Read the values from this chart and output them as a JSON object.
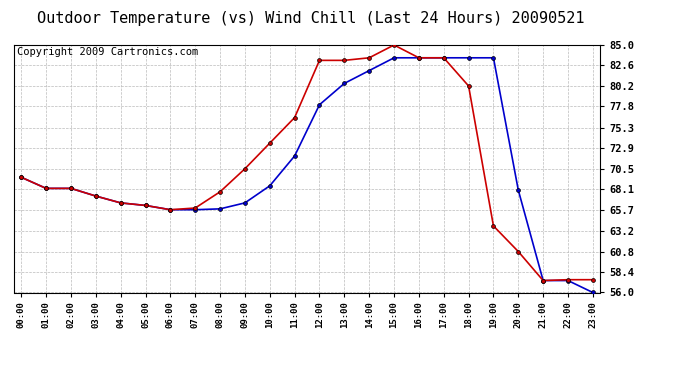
{
  "title": "Outdoor Temperature (vs) Wind Chill (Last 24 Hours) 20090521",
  "copyright": "Copyright 2009 Cartronics.com",
  "hours": [
    "00:00",
    "01:00",
    "02:00",
    "03:00",
    "04:00",
    "05:00",
    "06:00",
    "07:00",
    "08:00",
    "09:00",
    "10:00",
    "11:00",
    "12:00",
    "13:00",
    "14:00",
    "15:00",
    "16:00",
    "17:00",
    "18:00",
    "19:00",
    "20:00",
    "21:00",
    "22:00",
    "23:00"
  ],
  "temp": [
    69.5,
    68.2,
    68.2,
    67.3,
    66.5,
    66.2,
    65.7,
    65.9,
    67.8,
    70.5,
    73.5,
    76.5,
    83.2,
    83.2,
    83.5,
    85.0,
    83.5,
    83.5,
    80.2,
    63.8,
    60.8,
    57.4,
    57.5,
    57.5
  ],
  "wind_chill": [
    69.5,
    68.2,
    68.2,
    67.3,
    66.5,
    66.2,
    65.7,
    65.7,
    65.8,
    66.5,
    68.5,
    72.0,
    78.0,
    80.5,
    82.0,
    83.5,
    83.5,
    83.5,
    83.5,
    83.5,
    68.0,
    57.4,
    57.4,
    56.0
  ],
  "temp_color": "#cc0000",
  "wind_chill_color": "#0000cc",
  "ylim": [
    56.0,
    85.0
  ],
  "yticks": [
    85.0,
    82.6,
    80.2,
    77.8,
    75.3,
    72.9,
    70.5,
    68.1,
    65.7,
    63.2,
    60.8,
    58.4,
    56.0
  ],
  "background_color": "#ffffff",
  "plot_bg_color": "#ffffff",
  "grid_color": "#bbbbbb",
  "title_fontsize": 11,
  "copyright_fontsize": 7.5
}
